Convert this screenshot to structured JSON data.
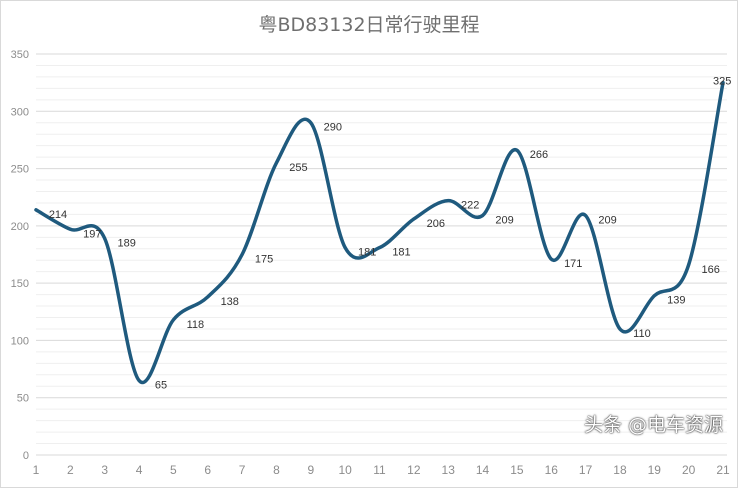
{
  "chart_data": {
    "type": "line",
    "title": "粤BD83132日常行驶里程",
    "categories": [
      "1",
      "2",
      "3",
      "4",
      "5",
      "6",
      "7",
      "8",
      "9",
      "10",
      "11",
      "12",
      "13",
      "14",
      "15",
      "16",
      "17",
      "18",
      "19",
      "20",
      "21"
    ],
    "series": [
      {
        "values": [
          214,
          197,
          189,
          65,
          118,
          138,
          175,
          255,
          290,
          181,
          181,
          206,
          222,
          209,
          266,
          171,
          209,
          110,
          139,
          166,
          325
        ]
      }
    ],
    "ylim": [
      0,
      350
    ],
    "yticks": [
      0,
      50,
      100,
      150,
      200,
      250,
      300,
      350
    ],
    "smooth": true,
    "grid": true,
    "line_color": "#1f5a7e",
    "data_labels": true
  },
  "watermark": "头条 @电车资源"
}
